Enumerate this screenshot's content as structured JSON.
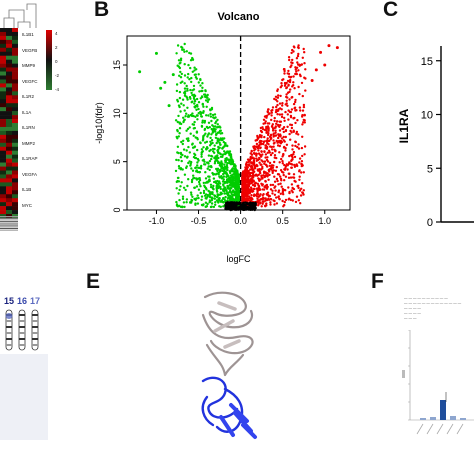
{
  "panels": {
    "b": "B",
    "c": "C",
    "e": "E",
    "f": "F"
  },
  "heatmap": {
    "genes": [
      "IL1B1",
      "VEGFB",
      "MMP9",
      "VEGFC",
      "IL1R2",
      "IL1A",
      "IL1RN",
      "MMP2",
      "IL1RAP",
      "VEGFA",
      "IL1B",
      "MYC"
    ],
    "scale_labels": [
      "4",
      "2",
      "0",
      "-2",
      "-4"
    ],
    "colors": {
      "high": "#e00000",
      "low": "#2e7d32",
      "mid": "#111111"
    }
  },
  "chart_data": {
    "type": "scatter",
    "title": "Volcano",
    "xlabel": "logFC",
    "ylabel": "-log10(fdr)",
    "xlim": [
      -1.35,
      1.3
    ],
    "ylim": [
      0,
      18
    ],
    "xticks": [
      "-1.0",
      "-0.5",
      "0.0",
      "0.5",
      "1.0"
    ],
    "yticks": [
      "0",
      "5",
      "10",
      "15"
    ],
    "vline": 0,
    "series": [
      {
        "color": "#00cc00",
        "side": "down",
        "x_range": [
          -1.2,
          -0.02
        ],
        "y_range": [
          0.3,
          17.0
        ]
      },
      {
        "color": "#ee0000",
        "side": "up",
        "x_range": [
          0.02,
          1.2
        ],
        "y_range": [
          0.3,
          17.2
        ]
      },
      {
        "color": "#000000",
        "side": "ns",
        "x_range": [
          -0.18,
          0.18
        ],
        "y_range": [
          0,
          0.8
        ]
      }
    ],
    "outliers": [
      {
        "x": -1.2,
        "y": 14.3,
        "c": "#00cc00"
      },
      {
        "x": -0.95,
        "y": 12.6,
        "c": "#00cc00"
      },
      {
        "x": -1.0,
        "y": 16.2,
        "c": "#00cc00"
      },
      {
        "x": -0.9,
        "y": 13.2,
        "c": "#00cc00"
      },
      {
        "x": -0.8,
        "y": 14.0,
        "c": "#00cc00"
      },
      {
        "x": -0.85,
        "y": 10.8,
        "c": "#00cc00"
      },
      {
        "x": 1.15,
        "y": 16.8,
        "c": "#ee0000"
      },
      {
        "x": 1.05,
        "y": 17.0,
        "c": "#ee0000"
      },
      {
        "x": 0.95,
        "y": 16.3,
        "c": "#ee0000"
      },
      {
        "x": 0.9,
        "y": 14.5,
        "c": "#ee0000"
      },
      {
        "x": 0.85,
        "y": 13.4,
        "c": "#ee0000"
      },
      {
        "x": 1.0,
        "y": 15.0,
        "c": "#ee0000"
      }
    ]
  },
  "panel_c": {
    "ylabel": "IL1RA",
    "yticks": [
      "0",
      "5",
      "10",
      "15"
    ],
    "ylim": [
      0,
      16
    ]
  },
  "chromosomes": {
    "labels": [
      "15",
      "16",
      "17"
    ],
    "colors": [
      "#1a237e",
      "#3949ab",
      "#5c6bc0"
    ]
  },
  "panel_f": {
    "legend": [
      "— — — — — — — — — —",
      "— — — — — — — — — — — — —",
      "— — — —",
      "— — — —",
      "— — —"
    ],
    "bar_color": "#1f4e9c"
  }
}
